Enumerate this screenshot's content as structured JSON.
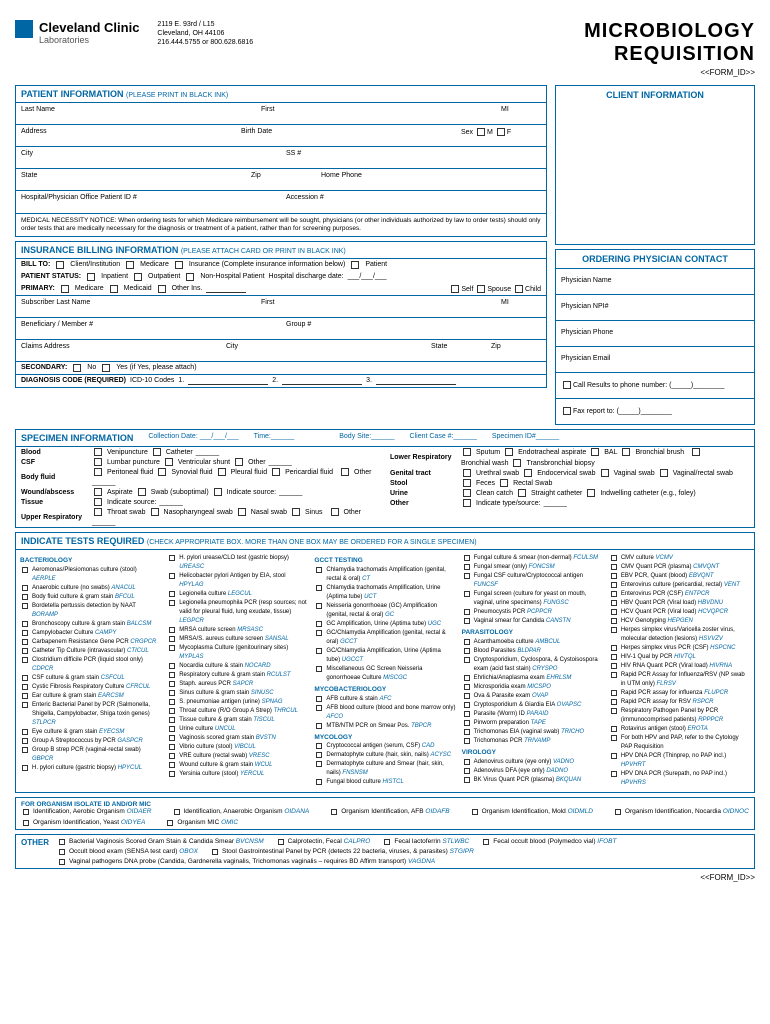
{
  "header": {
    "org": "Cleveland Clinic",
    "sub": "Laboratories",
    "addr1": "2119 E. 93rd / L15",
    "addr2": "Cleveland, OH 44106",
    "phone": "216.444.5755 or 800.628.6816",
    "title1": "MICROBIOLOGY",
    "title2": "REQUISITION",
    "formid": "<<FORM_ID>>"
  },
  "patient": {
    "header": "PATIENT INFORMATION",
    "sub": "(PLEASE PRINT IN BLACK INK)",
    "lastname": "Last Name",
    "first": "First",
    "mi": "MI",
    "address": "Address",
    "birthdate": "Birth Date",
    "sex": "Sex",
    "m": "M",
    "f": "F",
    "city": "City",
    "ss": "SS #",
    "state": "State",
    "zip": "Zip",
    "homephone": "Home Phone",
    "hospid": "Hospital/Physician Office Patient ID #",
    "accession": "Accession #"
  },
  "notice": "MEDICAL NECESSITY NOTICE: When ordering tests for which Medicare reimbursement will be sought, physicians (or other individuals authorized by law to order tests) should only order tests that are medically necessary for the diagnosis or treatment of a patient, rather than for screening purposes.",
  "insurance": {
    "header": "INSURANCE BILLING INFORMATION",
    "sub": "(PLEASE ATTACH CARD OR PRINT IN BLACK INK)",
    "billto": "BILL TO:",
    "client": "Client/Institution",
    "medicare": "Medicare",
    "insurance": "Insurance (Complete insurance information below)",
    "patient": "Patient",
    "status": "PATIENT STATUS:",
    "inpatient": "Inpatient",
    "outpatient": "Outpatient",
    "nonhosp": "Non-Hospital Patient",
    "discharge": "Hospital discharge date:",
    "primary": "PRIMARY:",
    "medicaid": "Medicaid",
    "otherins": "Other Ins.",
    "self": "Self",
    "spouse": "Spouse",
    "child": "Child",
    "sublast": "Subscriber Last Name",
    "first": "First",
    "mi": "MI",
    "beneficiary": "Beneficiary / Member #",
    "group": "Group #",
    "claims": "Claims Address",
    "city": "City",
    "state": "State",
    "zip": "Zip",
    "secondary": "SECONDARY:",
    "no": "No",
    "yes": "Yes (if Yes, please attach)",
    "diagnosis": "DIAGNOSIS CODE (REQUIRED)",
    "icd": "ICD-10 Codes"
  },
  "client": {
    "header": "CLIENT INFORMATION"
  },
  "physician": {
    "header": "ORDERING PHYSICIAN CONTACT",
    "name": "Physician Name",
    "npi": "Physician NPI#",
    "phone": "Physician Phone",
    "email": "Physician Email",
    "call": "Call Results to phone number: (",
    "fax": "Fax report to: ("
  },
  "specimen": {
    "header": "SPECIMEN INFORMATION",
    "colldate": "Collection Date:",
    "time": "Time:",
    "bodysite": "Body Site:",
    "clientcase": "Client Case #:",
    "specid": "Specimen ID#",
    "blood": "Blood",
    "veni": "Venipuncture",
    "catheter": "Catheter",
    "csf": "CSF",
    "lumbar": "Lumbar puncture",
    "ventric": "Ventricular shunt",
    "other": "Other",
    "bodyfluid": "Body fluid",
    "peritoneal": "Peritoneal fluid",
    "synovial": "Synovial fluid",
    "pleural": "Pleural fluid",
    "pericardial": "Pericardial fluid",
    "wound": "Wound/abscess",
    "aspirate": "Aspirate",
    "swab": "Swab (suboptimal)",
    "indicate": "Indicate source:",
    "tissue": "Tissue",
    "upperresp": "Upper Respiratory",
    "throat": "Throat swab",
    "naso": "Nasopharyngeal swab",
    "nasal": "Nasal swab",
    "sinus": "Sinus",
    "lowerresp": "Lower Respiratory",
    "sputum": "Sputum",
    "endo": "Endotracheal aspirate",
    "bal": "BAL",
    "bronchbrush": "Bronchial brush",
    "bronchwash": "Bronchial wash",
    "transbronch": "Transbronchial biopsy",
    "genital": "Genital tract",
    "urethral": "Urethral swab",
    "endocerv": "Endocervical swab",
    "vaginal": "Vaginal swab",
    "vagrect": "Vaginal/rectal swab",
    "stool": "Stool",
    "feces": "Feces",
    "rectal": "Rectal Swab",
    "urine": "Urine",
    "clean": "Clean catch",
    "straight": "Straight catheter",
    "indwell": "Indwelling catheter (e.g., foley)",
    "othertype": "Other",
    "indtype": "Indicate type/source:"
  },
  "tests": {
    "header": "INDICATE TESTS REQUIRED",
    "sub": "(CHECK APPROPRIATE BOX. MORE THAN ONE BOX MAY BE ORDERED FOR A SINGLE SPECIMEN)",
    "bacteriology": "BACTERIOLOGY",
    "col1": [
      {
        "t": "Aeromonas/Plesiomonas culture (stool)",
        "c": "AERPLE"
      },
      {
        "t": "Anaerobic culture (no swabs)",
        "c": "ANACUL"
      },
      {
        "t": "Body fluid culture & gram stain",
        "c": "BFCUL"
      },
      {
        "t": "Bordetella pertussis detection by NAAT",
        "c": "BORAMP"
      },
      {
        "t": "Bronchoscopy culture & gram stain",
        "c": "BALCSM"
      },
      {
        "t": "Campylobacter Culture",
        "c": "CAMPY"
      },
      {
        "t": "Carbapenem Resistance Gene PCR",
        "c": "CRGPCR"
      },
      {
        "t": "Catheter Tip Culture (intravascular)",
        "c": "CTICUL"
      },
      {
        "t": "Clostridium difficile PCR (liquid stool only)",
        "c": "CDPCR"
      },
      {
        "t": "CSF culture & gram stain",
        "c": "CSFCUL"
      },
      {
        "t": "Cystic Fibrosis Respiratory Culture",
        "c": "CFRCUL"
      },
      {
        "t": "Ear culture & gram stain",
        "c": "EARCSM"
      },
      {
        "t": "Enteric Bacterial Panel by PCR (Salmonella, Shigella, Campylobacter, Shiga toxin genes)",
        "c": "STLPCR"
      },
      {
        "t": "Eye culture & gram stain",
        "c": "EYECSM"
      },
      {
        "t": "Group A Streptococcus by PCR",
        "c": "GASPCR"
      },
      {
        "t": "Group B strep PCR (vaginal-rectal swab)",
        "c": "GBPCR"
      },
      {
        "t": "H. pylori culture (gastric biopsy)",
        "c": "HPYCUL"
      }
    ],
    "col2": [
      {
        "t": "H. pylori urease/CLO test (gastric biopsy)",
        "c": "UREASC"
      },
      {
        "t": "Helicobacter pylori Antigen by EIA, stool",
        "c": "HPYLAG"
      },
      {
        "t": "Legionella culture",
        "c": "LEGCUL"
      },
      {
        "t": "Legionella pneumophila PCR (resp sources; not valid for pleural fluid, lung exudate, tissue)",
        "c": "LEGPCR"
      },
      {
        "t": "MRSA culture screen",
        "c": "MRSASC"
      },
      {
        "t": "MRSA/S. aureus culture screen",
        "c": "SANSAL"
      },
      {
        "t": "Mycoplasma Culture (genitourinary sites)",
        "c": "MYPLAS"
      },
      {
        "t": "Nocardia culture & stain",
        "c": "NOCARD"
      },
      {
        "t": "Respiratory culture & gram stain",
        "c": "RCULST"
      },
      {
        "t": "Staph. aureus PCR",
        "c": "SAPCR"
      },
      {
        "t": "Sinus culture & gram stain",
        "c": "SINUSC"
      },
      {
        "t": "S. pneumoniae antigen (urine)",
        "c": "SPNAG"
      },
      {
        "t": "Throat culture (R/O Group A Strep)",
        "c": "THRCUL"
      },
      {
        "t": "Tissue culture & gram stain",
        "c": "TISCUL"
      },
      {
        "t": "Urine culture",
        "c": "UNCUL"
      },
      {
        "t": "Vaginosis scored gram stain",
        "c": "BVSTN"
      },
      {
        "t": "Vibrio culture (stool)",
        "c": "VIBCUL"
      },
      {
        "t": "VRE culture (rectal swab)",
        "c": "VRESC"
      },
      {
        "t": "Wound culture & gram stain",
        "c": "WCUL"
      },
      {
        "t": "Yersinia culture (stool)",
        "c": "YERCUL"
      }
    ],
    "gcct": "GCCT TESTING",
    "col3a": [
      {
        "t": "Chlamydia trachomatis Amplification (genital, rectal & oral)",
        "c": "CT"
      },
      {
        "t": "Chlamydia trachomatis Amplification, Urine (Aptima tube)",
        "c": "UCT"
      },
      {
        "t": "Neisseria gonorrhoeae (GC) Amplification (genital, rectal & oral)",
        "c": "GC"
      },
      {
        "t": "GC Amplification, Urine (Aptima tube)",
        "c": "UGC"
      },
      {
        "t": "GC/Chlamydia Amplification (genital, rectal & oral)",
        "c": "GCCT"
      },
      {
        "t": "GC/Chlamydia Amplification, Urine (Aptima tube)",
        "c": "UGCCT"
      },
      {
        "t": "Miscellaneous GC Screen Neisseria gonorrhoeae Culture",
        "c": "MISCGC"
      }
    ],
    "myco": "MYCOBACTERIOLOGY",
    "col3b": [
      {
        "t": "AFB culture & stain",
        "c": "AFC"
      },
      {
        "t": "AFB blood culture (blood and bone marrow only)",
        "c": "AFCO"
      },
      {
        "t": "MTB/NTM PCR on Smear Pos.",
        "c": "TBPCR"
      }
    ],
    "mycology": "MYCOLOGY",
    "col3c": [
      {
        "t": "Cryptococcal antigen (serum, CSF)",
        "c": "CAD"
      },
      {
        "t": "Dermatophyte culture (hair, skin, nails)",
        "c": "ACYSC"
      },
      {
        "t": "Dermatophyte culture and Smear (hair, skin, nails)",
        "c": "FNSNSM"
      },
      {
        "t": "Fungal blood culture",
        "c": "HISTCL"
      }
    ],
    "col4a": [
      {
        "t": "Fungal culture & smear (non-dermal)",
        "c": "FCULSM"
      },
      {
        "t": "Fungal smear (only)",
        "c": "FONCSM"
      },
      {
        "t": "Fungal CSF culture/Cryptococcal antigen",
        "c": "FUNCSF"
      },
      {
        "t": "Fungal screen (culture for yeast on mouth, vaginal, urine specimens)",
        "c": "FUNGSC"
      },
      {
        "t": "Pneumocystis PCR",
        "c": "PCPPCR"
      },
      {
        "t": "Vaginal smear for Candida",
        "c": "CANSTN"
      }
    ],
    "parasit": "PARASITOLOGY",
    "col4b": [
      {
        "t": "Acanthamoeba culture",
        "c": "AMBCUL"
      },
      {
        "t": "Blood Parasites",
        "c": "BLDPAR"
      },
      {
        "t": "Cryptosporidium, Cyclospora, & Cystoisospora exam (acid fast stain)",
        "c": "CRYSPO"
      },
      {
        "t": "Ehrlichia/Anaplasma exam",
        "c": "EHRLSM"
      },
      {
        "t": "Microsporidia exam",
        "c": "MICSPO"
      },
      {
        "t": "Ova & Parasite exam",
        "c": "OVAP"
      },
      {
        "t": "Cryptosporidium & Giardia EIA",
        "c": "OVAPSC"
      },
      {
        "t": "Parasite (Worm) ID",
        "c": "PARAID"
      },
      {
        "t": "Pinworm preparation",
        "c": "TAPE"
      },
      {
        "t": "Trichomonas EIA (vaginal swab)",
        "c": "TRICHO"
      },
      {
        "t": "Trichomonas PCR",
        "c": "TRIVAMP"
      }
    ],
    "virology": "VIROLOGY",
    "col4c": [
      {
        "t": "Adenovirus culture (eye only)",
        "c": "VADNO"
      },
      {
        "t": "Adenovirus DFA (eye only)",
        "c": "DADNO"
      },
      {
        "t": "BK Virus Quant PCR (plasma)",
        "c": "BKQUAN"
      }
    ],
    "col5": [
      {
        "t": "CMV culture",
        "c": "VCMV"
      },
      {
        "t": "CMV Quant PCR (plasma)",
        "c": "CMVQNT"
      },
      {
        "t": "EBV PCR, Quant (blood)",
        "c": "EBVQNT"
      },
      {
        "t": "Enterovirus culture (pericardial, rectal)",
        "c": "VENT"
      },
      {
        "t": "Enterovirus PCR (CSF)",
        "c": "ENTPCR"
      },
      {
        "t": "HBV Quant PCR (Viral load)",
        "c": "HBVDNU"
      },
      {
        "t": "HCV Quant PCR (Viral load)",
        "c": "HCVQPCR"
      },
      {
        "t": "HCV Genotyping",
        "c": "HEPGEN"
      },
      {
        "t": "Herpes simplex virus/Varicella zoster virus, molecular detection (lesions)",
        "c": "HSVVZV"
      },
      {
        "t": "Herpes simplex virus PCR (CSF)",
        "c": "HSPCNC"
      },
      {
        "t": "HIV-1 Qual by PCR",
        "c": "HIVTQL"
      },
      {
        "t": "HIV RNA Quant PCR (Viral load)",
        "c": "HIVRNA"
      },
      {
        "t": "Rapid PCR Assay for Influenza/RSV (NP swab in UTM only)",
        "c": "FLRSV"
      },
      {
        "t": "Rapid PCR assay for influenza",
        "c": "FLUPCR"
      },
      {
        "t": "Rapid PCR assay for RSV",
        "c": "RSPCR"
      },
      {
        "t": "Respiratory Pathogen Panel by PCR (immunocomprised patients)",
        "c": "RPPPCR"
      },
      {
        "t": "Rotavirus antigen (stool)",
        "c": "EROTA"
      },
      {
        "t": "For both HPV and PAP, refer to the Cytology PAP Requisition",
        "c": ""
      },
      {
        "t": "HPV DNA PCR (Thinprep, no PAP incl.)",
        "c": "HPVHRT"
      },
      {
        "t": "HPV DNA PCR (Surepath, no PAP incl.)",
        "c": "HPVHRS"
      }
    ]
  },
  "organism": {
    "header": "FOR ORGANISM ISOLATE ID AND/OR MIC",
    "items": [
      {
        "t": "Identification, Aerobic Organism",
        "c": "OIDAER"
      },
      {
        "t": "Identification, Anaerobic Organism",
        "c": "OIDANA"
      },
      {
        "t": "Organism Identification, AFB",
        "c": "OIDAFB"
      },
      {
        "t": "Organism Identification, Mold",
        "c": "OIDMLD"
      },
      {
        "t": "Organism Identification, Nocardia",
        "c": "OIDNOC"
      },
      {
        "t": "Organism Identification, Yeast",
        "c": "OIDYEA"
      },
      {
        "t": "Organism MIC",
        "c": "OMIC"
      }
    ]
  },
  "other": {
    "label": "OTHER",
    "items": [
      {
        "t": "Bacterial Vaginosis Scored Gram Stain & Candida Smear",
        "c": "BVCNSM"
      },
      {
        "t": "Calprotectin, Fecal",
        "c": "CALPRO"
      },
      {
        "t": "Fecal lactoferrin",
        "c": "STLWBC"
      },
      {
        "t": "Fecal occult blood (Polymedco vial)",
        "c": "IFOBT"
      },
      {
        "t": "Occult blood exam (SENSA test card)",
        "c": "OBOX"
      },
      {
        "t": "Stool Gastrointestinal Panel by PCR (detects 22 bacteria, viruses, & parasites)",
        "c": "STGIPR"
      },
      {
        "t": "Vaginal pathogens DNA probe (Candida, Gardnerella vaginalis, Trichomonas vaginalis – requires BD Affirm transport)",
        "c": "VAGDNA"
      }
    ]
  }
}
